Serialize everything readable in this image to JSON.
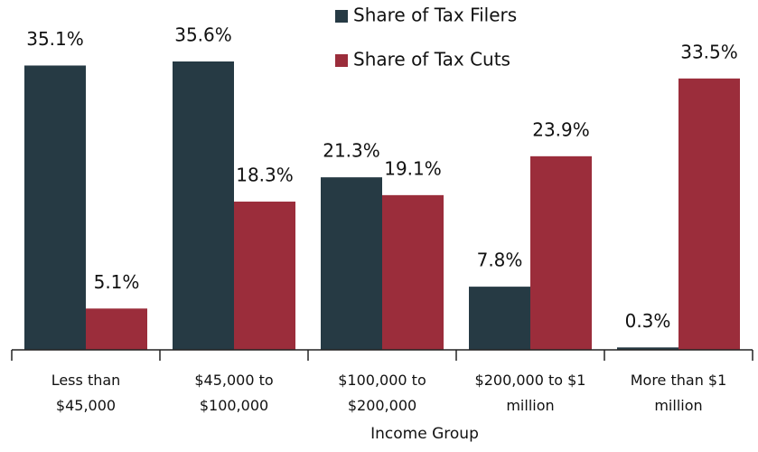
{
  "chart_data": {
    "type": "bar",
    "categories": [
      "Less than\n$45,000",
      "$45,000 to\n$100,000",
      "$100,000 to\n$200,000",
      "$200,000 to $1\nmillion",
      "More than $1\nmillion"
    ],
    "x_label": "Income Group",
    "series": [
      {
        "name": "Share of Tax Filers",
        "color": "#263a44",
        "values": [
          35.1,
          35.6,
          21.3,
          7.8,
          0.3
        ],
        "value_labels": [
          "35.1%",
          "35.6%",
          "21.3%",
          "7.8%",
          "0.3%"
        ]
      },
      {
        "name": "Share of Tax Cuts",
        "color": "#9b2d3b",
        "values": [
          5.1,
          18.3,
          19.1,
          23.9,
          33.5
        ],
        "value_labels": [
          "5.1%",
          "18.3%",
          "19.1%",
          "23.9%",
          "33.5%"
        ]
      }
    ],
    "legend": "top"
  }
}
